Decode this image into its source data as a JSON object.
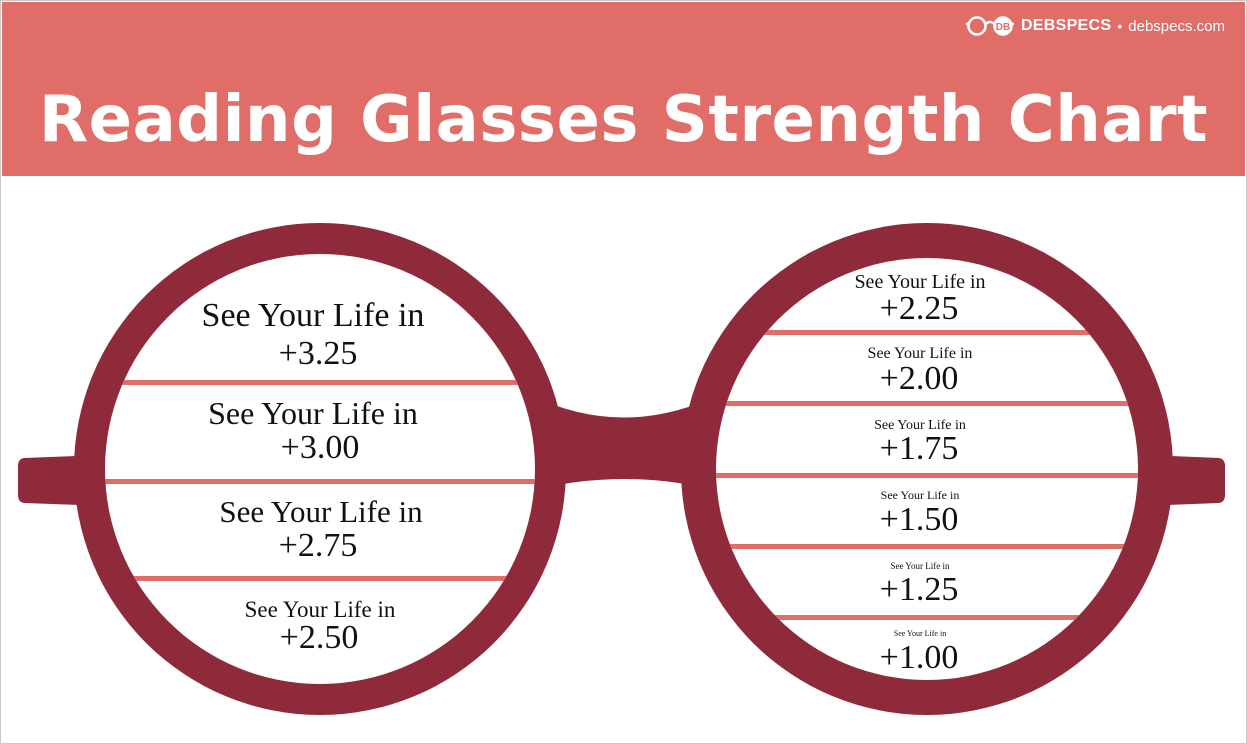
{
  "brand": {
    "logo_icon": "glasses-logo-icon",
    "name": "DEBSPECS",
    "separator": "•",
    "url": "debspecs.com"
  },
  "title": "Reading Glasses Strength Chart",
  "colors": {
    "header": "#e06d68",
    "frame": "#8f2a3b",
    "divider": "#e06d68",
    "title_text": "#ffffff"
  },
  "left_lens": {
    "items": [
      {
        "label": "See Your Life in",
        "value": "+3.25"
      },
      {
        "label": "See Your Life in",
        "value": "+3.00"
      },
      {
        "label": "See Your Life in",
        "value": "+2.75"
      },
      {
        "label": "See Your Life in",
        "value": "+2.50"
      }
    ]
  },
  "right_lens": {
    "items": [
      {
        "label": "See Your Life in",
        "value": "+2.25"
      },
      {
        "label": "See Your Life in",
        "value": "+2.00"
      },
      {
        "label": "See Your Life in",
        "value": "+1.75"
      },
      {
        "label": "See Your Life in",
        "value": "+1.50"
      },
      {
        "label": "See Your Life in",
        "value": "+1.25"
      },
      {
        "label": "See Your Life in",
        "value": "+1.00"
      }
    ]
  }
}
